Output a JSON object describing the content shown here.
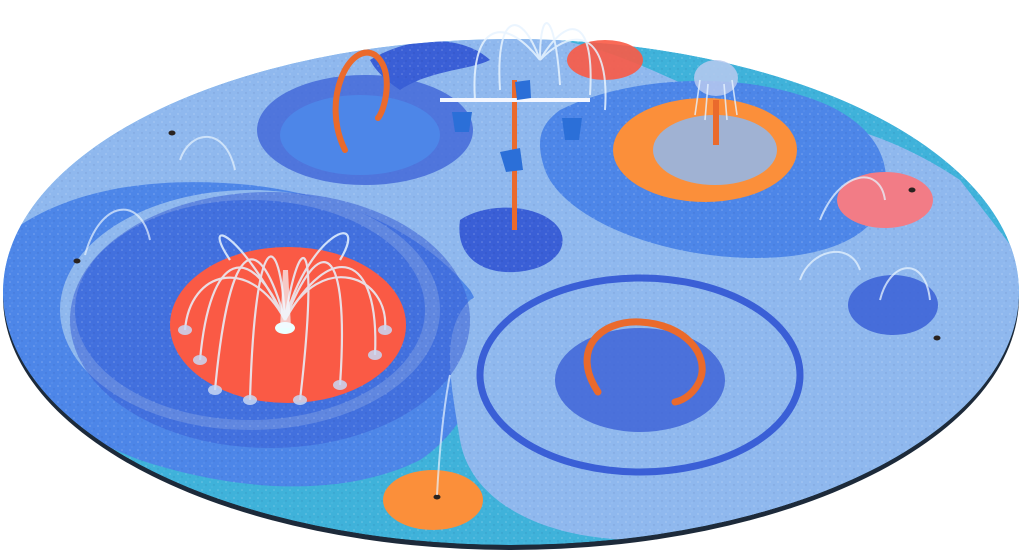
{
  "scene": {
    "subject": "splash-pad-render",
    "colors": {
      "background": "#ffffff",
      "deck_cyan": "#3fb2da",
      "deck_light": "#8fb8ee",
      "deck_blue": "#4d86e8",
      "deck_deep": "#3a5fd6",
      "coral": "#fa5a45",
      "orange": "#fb8f3a",
      "pink": "#f27c86",
      "pipe_orange": "#ea6a2c",
      "bucket_blue": "#2b6fd8",
      "drain": "#2a2320",
      "water": "#e8f4ff"
    }
  }
}
